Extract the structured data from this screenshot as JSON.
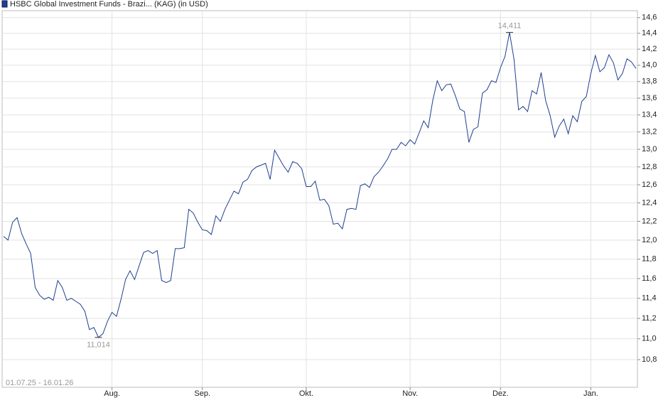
{
  "chart_data": {
    "type": "line",
    "title": "HSBC Global Investment Funds - Brazi... (KAG) (in USD)",
    "date_range": "01.07.25 - 16.01.26",
    "log_scale": true,
    "grid": true,
    "categories": [
      null,
      null,
      null,
      null,
      null,
      null,
      null,
      null,
      null,
      null,
      null,
      null,
      null,
      null,
      null,
      null,
      null,
      null,
      null,
      null,
      null,
      null,
      null,
      null,
      "Aug.",
      null,
      null,
      null,
      null,
      null,
      null,
      null,
      null,
      null,
      null,
      null,
      null,
      null,
      null,
      null,
      null,
      null,
      null,
      null,
      "Sep.",
      null,
      null,
      null,
      null,
      null,
      null,
      null,
      null,
      null,
      null,
      null,
      null,
      null,
      null,
      null,
      null,
      null,
      null,
      null,
      null,
      null,
      null,
      "Okt.",
      null,
      null,
      null,
      null,
      null,
      null,
      null,
      null,
      null,
      null,
      null,
      null,
      null,
      null,
      null,
      null,
      null,
      null,
      null,
      null,
      null,
      null,
      "Nov.",
      null,
      null,
      null,
      null,
      null,
      null,
      null,
      null,
      null,
      null,
      null,
      null,
      null,
      null,
      null,
      null,
      null,
      null,
      null,
      "Dez.",
      null,
      null,
      null,
      null,
      null,
      null,
      null,
      null,
      null,
      null,
      null,
      null,
      null,
      null,
      null,
      null,
      null,
      null,
      null,
      "Jan.",
      null,
      null,
      null,
      null,
      null,
      null,
      null,
      null,
      null,
      null
    ],
    "series": [
      {
        "color": "#1f3f8f",
        "values": [
          12.04,
          12.0,
          12.19,
          12.24,
          12.07,
          11.96,
          11.86,
          11.51,
          11.43,
          11.39,
          11.41,
          11.38,
          11.58,
          11.51,
          11.38,
          11.4,
          11.37,
          11.34,
          11.27,
          11.09,
          11.11,
          11.014,
          11.05,
          11.17,
          11.26,
          11.22,
          11.39,
          11.59,
          11.68,
          11.59,
          11.73,
          11.87,
          11.89,
          11.86,
          11.89,
          11.58,
          11.56,
          11.58,
          11.91,
          11.91,
          11.92,
          12.33,
          12.29,
          12.19,
          12.11,
          12.1,
          12.06,
          12.26,
          12.2,
          12.33,
          12.43,
          12.53,
          12.5,
          12.63,
          12.66,
          12.76,
          12.8,
          12.82,
          12.84,
          12.66,
          12.99,
          12.9,
          12.81,
          12.74,
          12.86,
          12.84,
          12.78,
          12.58,
          12.58,
          12.64,
          12.43,
          12.44,
          12.37,
          12.17,
          12.18,
          12.12,
          12.33,
          12.34,
          12.33,
          12.59,
          12.61,
          12.57,
          12.69,
          12.74,
          12.81,
          12.89,
          13.0,
          13.0,
          13.08,
          13.04,
          13.11,
          13.06,
          13.19,
          13.33,
          13.25,
          13.57,
          13.81,
          13.69,
          13.76,
          13.77,
          13.63,
          13.47,
          13.44,
          13.08,
          13.23,
          13.26,
          13.66,
          13.7,
          13.81,
          13.79,
          13.97,
          14.11,
          14.411,
          14.07,
          13.46,
          13.5,
          13.44,
          13.69,
          13.65,
          13.91,
          13.57,
          13.39,
          13.14,
          13.27,
          13.35,
          13.18,
          13.39,
          13.32,
          13.56,
          13.62,
          13.9,
          14.12,
          13.92,
          13.97,
          14.13,
          14.03,
          13.82,
          13.9,
          14.08,
          14.04,
          13.96
        ]
      }
    ],
    "annotations": [
      {
        "value": 11.014,
        "label": "11,014"
      },
      {
        "value": 14.411,
        "label": "14,411"
      }
    ],
    "ylim": [
      10.54,
      14.69
    ],
    "yticks": [
      {
        "value": 10.8,
        "label": "10,8"
      },
      {
        "value": 11.0,
        "label": "11,0"
      },
      {
        "value": 11.2,
        "label": "11,2"
      },
      {
        "value": 11.4,
        "label": "11,4"
      },
      {
        "value": 11.6,
        "label": "11,6"
      },
      {
        "value": 11.8,
        "label": "11,8"
      },
      {
        "value": 12.0,
        "label": "12,0"
      },
      {
        "value": 12.2,
        "label": "12,2"
      },
      {
        "value": 12.4,
        "label": "12,4"
      },
      {
        "value": 12.6,
        "label": "12,6"
      },
      {
        "value": 12.8,
        "label": "12,8"
      },
      {
        "value": 13.0,
        "label": "13,0"
      },
      {
        "value": 13.2,
        "label": "13,2"
      },
      {
        "value": 13.4,
        "label": "13,4"
      },
      {
        "value": 13.6,
        "label": "13,6"
      },
      {
        "value": 13.8,
        "label": "13,8"
      },
      {
        "value": 14.0,
        "label": "14,0"
      },
      {
        "value": 14.2,
        "label": "14,2"
      },
      {
        "value": 14.4,
        "label": "14,4"
      },
      {
        "value": 14.6,
        "label": "14,6"
      }
    ]
  }
}
